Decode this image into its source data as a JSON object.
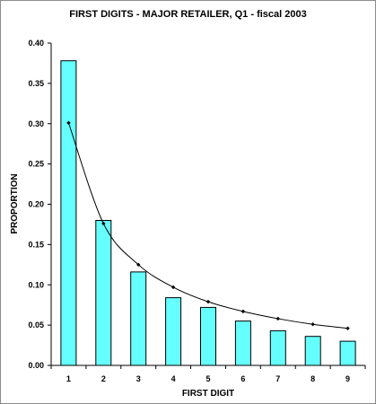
{
  "chart_data": {
    "type": "bar",
    "title": "FIRST DIGITS - MAJOR RETAILER, Q1 - fiscal 2003",
    "xlabel": "FIRST DIGIT",
    "ylabel": "PROPORTION",
    "categories": [
      "1",
      "2",
      "3",
      "4",
      "5",
      "6",
      "7",
      "8",
      "9"
    ],
    "ylim": [
      0,
      0.4
    ],
    "yticks": [
      "0.00",
      "0.05",
      "0.10",
      "0.15",
      "0.20",
      "0.25",
      "0.30",
      "0.35",
      "0.40"
    ],
    "grid": false,
    "series": [
      {
        "type": "bar",
        "values": [
          0.378,
          0.18,
          0.116,
          0.084,
          0.072,
          0.055,
          0.043,
          0.036,
          0.03
        ],
        "color": "#66ffff"
      },
      {
        "type": "line",
        "values": [
          0.301,
          0.176,
          0.125,
          0.097,
          0.079,
          0.067,
          0.058,
          0.051,
          0.046
        ],
        "color": "#000000"
      }
    ]
  }
}
